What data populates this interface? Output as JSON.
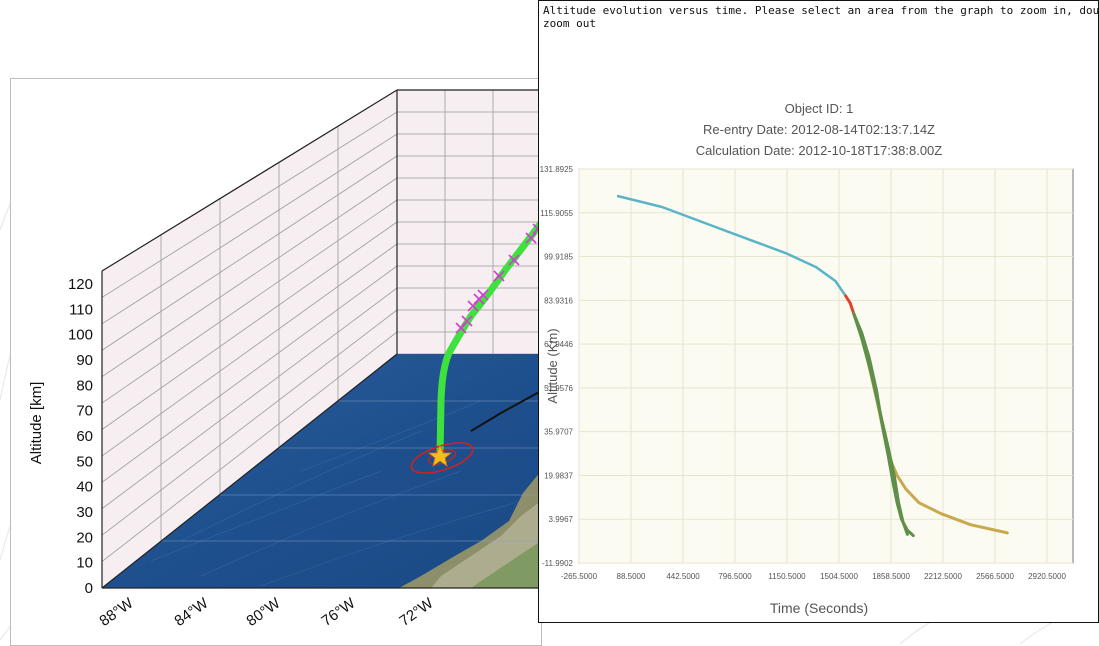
{
  "scene3d": {
    "zlabel": "Altitude [km]",
    "z_ticks": [
      "120",
      "110",
      "100",
      "90",
      "80",
      "70",
      "60",
      "50",
      "40",
      "30",
      "20",
      "10",
      "0"
    ],
    "lon_ticks": [
      "88°W",
      "84°W",
      "80°W",
      "76°W",
      "72°W"
    ]
  },
  "panel": {
    "caption": "Altitude evolution versus time. Please select an area from the graph to zoom in, dou\nzoom out"
  },
  "chart_data": {
    "type": "line",
    "title": [
      "Object ID: 1",
      "Re-entry Date: 2012-08-14T02:13:7.14Z",
      "Calculation Date: 2012-10-18T17:38:8.00Z"
    ],
    "xlabel": "Time (Seconds)",
    "ylabel": "Altitude (Km)",
    "x_ticks": [
      "-265.5000",
      "88.5000",
      "442.5000",
      "796.5000",
      "1150.5000",
      "1504.5000",
      "1858.5000",
      "2212.5000",
      "2566.5000",
      "2920.5000"
    ],
    "y_ticks": [
      "131.8925",
      "115.9055",
      "99.9185",
      "83.9316",
      "67.9446",
      "51.9576",
      "35.9707",
      "19.9837",
      "3.9967",
      "-11.9902"
    ],
    "xlim": [
      -265.5,
      3097.5
    ],
    "ylim": [
      -11.9902,
      131.8925
    ],
    "grid": true,
    "colors": {
      "blue": "#5ab4c8",
      "red": "#e0442e",
      "green": "#5f8f4a",
      "olive": "#c9a84e",
      "plot_bg": "#fbfbf2",
      "grid": "#e7e5cf"
    },
    "series": [
      {
        "color": "blue",
        "width": 2.5,
        "x": [
          0,
          300,
          600,
          900,
          1150,
          1350,
          1480,
          1550
        ],
        "y": [
          122,
          118,
          112,
          106,
          101,
          96,
          91,
          85.5
        ]
      },
      {
        "color": "red",
        "width": 3,
        "x": [
          1550,
          1580,
          1605
        ],
        "y": [
          85.5,
          83,
          79
        ]
      },
      {
        "color": "olive",
        "width": 3,
        "x": [
          1605,
          1650,
          1700,
          1760,
          1820,
          1860,
          1900,
          1960,
          2050,
          2200,
          2400,
          2650
        ],
        "y": [
          79,
          72,
          62,
          48,
          33,
          25,
          20,
          15,
          10,
          6,
          2,
          -1
        ]
      },
      {
        "color": "green",
        "width": 3,
        "x": [
          1605,
          1660,
          1710,
          1760,
          1800,
          1840,
          1870,
          1900,
          1930,
          1970,
          2010
        ],
        "y": [
          79,
          72,
          63,
          51,
          38,
          27,
          18,
          10,
          4,
          0,
          -2
        ]
      },
      {
        "color": "green",
        "width": 3,
        "x": [
          1605,
          1660,
          1720,
          1780,
          1840,
          1880,
          1910,
          1940,
          1970
        ],
        "y": [
          79,
          70,
          58,
          44,
          30,
          20,
          10,
          3,
          -1.5
        ]
      }
    ]
  }
}
